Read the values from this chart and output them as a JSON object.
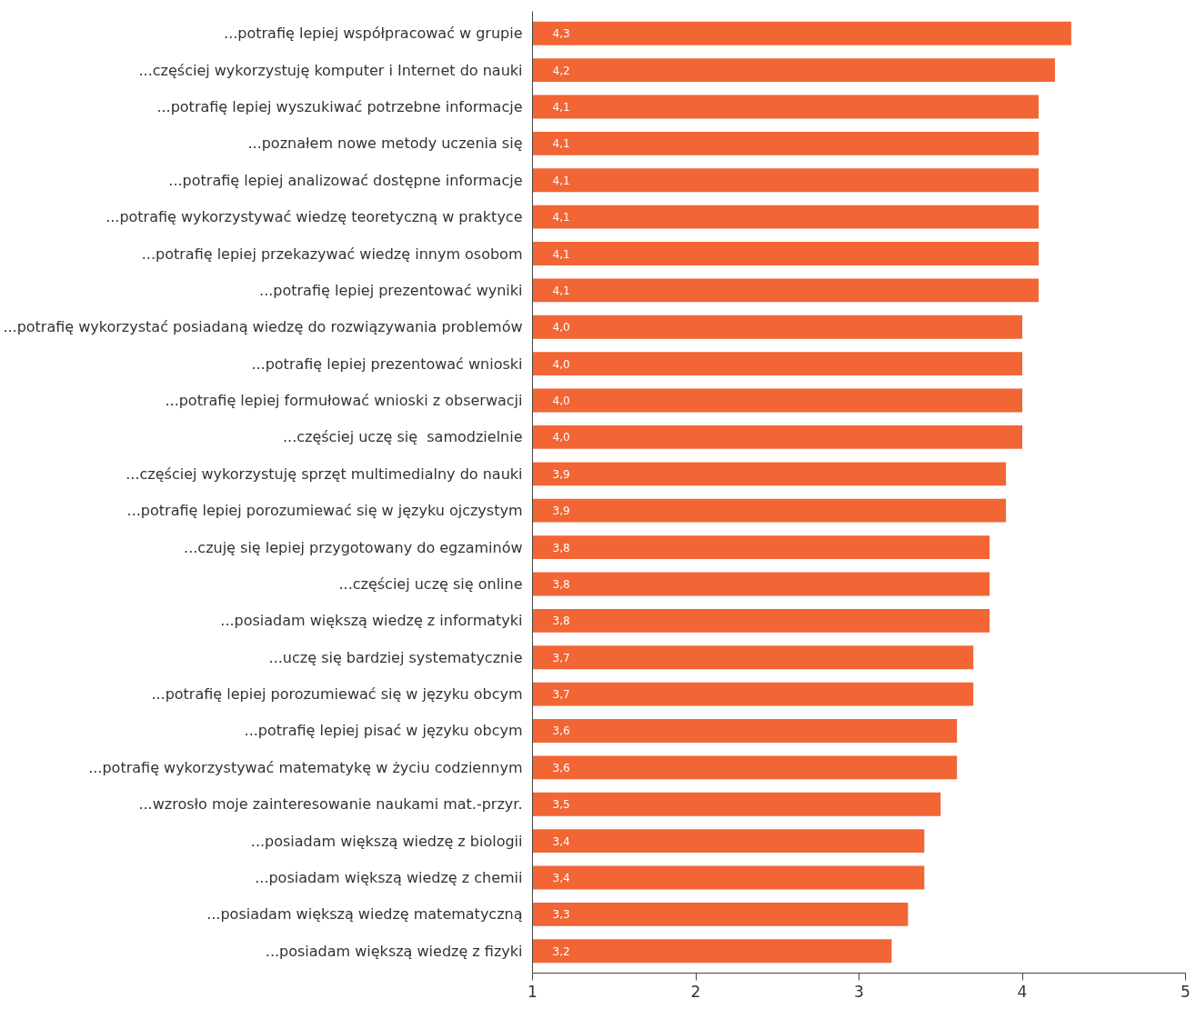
{
  "chart_data": {
    "type": "bar",
    "orientation": "horizontal",
    "categories": [
      "...potrafię lepiej współpracować w grupie",
      "...częściej wykorzystuję komputer i Internet do nauki",
      "...potrafię lepiej wyszukiwać potrzebne informacje",
      "...poznałem nowe metody uczenia się",
      "...potrafię lepiej analizować dostępne informacje",
      "...potrafię wykorzystywać wiedzę teoretyczną w praktyce",
      "...potrafię lepiej przekazywać wiedzę innym osobom",
      "...potrafię lepiej prezentować wyniki",
      "...potrafię wykorzystać posiadaną wiedzę do rozwiązywania problemów",
      "...potrafię lepiej prezentować wnioski",
      "...potrafię lepiej formułować wnioski z obserwacji",
      "...częściej uczę się  samodzielnie",
      "...częściej wykorzystuję sprzęt multimedialny do nauki",
      "...potrafię lepiej porozumiewać się w języku ojczystym",
      "...czuję się lepiej przygotowany do egzaminów",
      "...częściej uczę się online",
      "...posiadam większą wiedzę z informatyki",
      "...uczę się bardziej systematycznie",
      "...potrafię lepiej porozumiewać się w języku obcym",
      "...potrafię lepiej pisać w języku obcym",
      "...potrafię wykorzystywać matematykę w życiu codziennym",
      "...wzrosło moje zainteresowanie naukami mat.-przyr.",
      "...posiadam większą wiedzę z biologii",
      "...posiadam większą wiedzę z chemii",
      "...posiadam większą wiedzę matematyczną",
      "...posiadam większą wiedzę z fizyki"
    ],
    "values": [
      4.3,
      4.2,
      4.1,
      4.1,
      4.1,
      4.1,
      4.1,
      4.1,
      4.0,
      4.0,
      4.0,
      4.0,
      3.9,
      3.9,
      3.8,
      3.8,
      3.8,
      3.7,
      3.7,
      3.6,
      3.6,
      3.5,
      3.4,
      3.4,
      3.3,
      3.2
    ],
    "value_labels": [
      "4,3",
      "4,2",
      "4,1",
      "4,1",
      "4,1",
      "4,1",
      "4,1",
      "4,1",
      "4,0",
      "4,0",
      "4,0",
      "4,0",
      "3,9",
      "3,9",
      "3,8",
      "3,8",
      "3,8",
      "3,7",
      "3,7",
      "3,6",
      "3,6",
      "3,5",
      "3,4",
      "3,4",
      "3,3",
      "3,2"
    ],
    "color": "#f26535",
    "xlim": [
      1,
      5
    ],
    "xticks": [
      1,
      2,
      3,
      4,
      5
    ],
    "grid": false
  }
}
